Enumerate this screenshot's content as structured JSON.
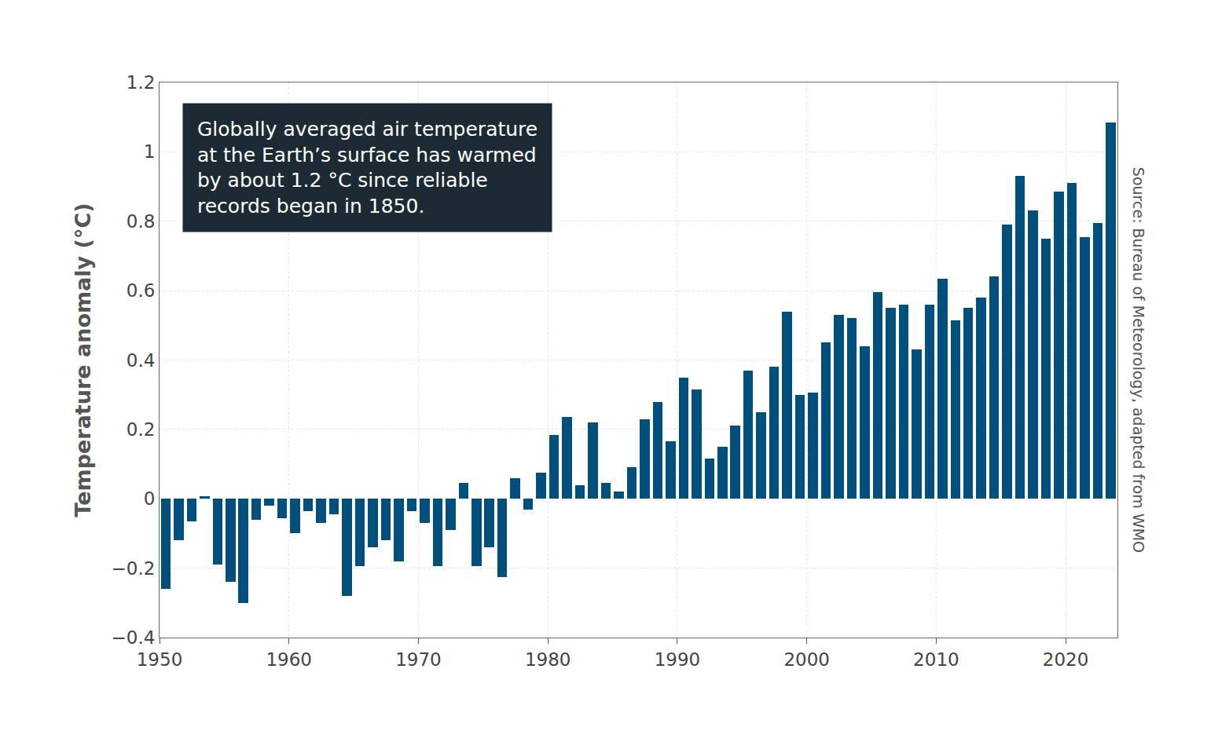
{
  "chart_data": {
    "type": "bar",
    "y_label": "Temperature anomaly (°C)",
    "annotation": "Globally averaged air temperature\nat the Earth’s surface has warmed\nby about 1.2 °C since reliable\nrecords began in 1850.",
    "source": "Source: Bureau of Meteorology, adapted from WMO",
    "x": [
      1950,
      1951,
      1952,
      1953,
      1954,
      1955,
      1956,
      1957,
      1958,
      1959,
      1960,
      1961,
      1962,
      1963,
      1964,
      1965,
      1966,
      1967,
      1968,
      1969,
      1970,
      1971,
      1972,
      1973,
      1974,
      1975,
      1976,
      1977,
      1978,
      1979,
      1980,
      1981,
      1982,
      1983,
      1984,
      1985,
      1986,
      1987,
      1988,
      1989,
      1990,
      1991,
      1992,
      1993,
      1994,
      1995,
      1996,
      1997,
      1998,
      1999,
      2000,
      2001,
      2002,
      2003,
      2004,
      2005,
      2006,
      2007,
      2008,
      2009,
      2010,
      2011,
      2012,
      2013,
      2014,
      2015,
      2016,
      2017,
      2018,
      2019,
      2020,
      2021,
      2022,
      2023
    ],
    "values": [
      -0.26,
      -0.12,
      -0.065,
      0.007,
      -0.19,
      -0.24,
      -0.3,
      -0.06,
      -0.02,
      -0.055,
      -0.1,
      -0.035,
      -0.07,
      -0.045,
      -0.28,
      -0.195,
      -0.14,
      -0.12,
      -0.18,
      -0.035,
      -0.07,
      -0.195,
      -0.09,
      0.045,
      -0.195,
      -0.14,
      -0.225,
      0.06,
      -0.03,
      0.075,
      0.185,
      0.235,
      0.04,
      0.22,
      0.045,
      0.02,
      0.09,
      0.23,
      0.28,
      0.165,
      0.35,
      0.315,
      0.115,
      0.15,
      0.21,
      0.37,
      0.25,
      0.38,
      0.54,
      0.3,
      0.305,
      0.45,
      0.53,
      0.52,
      0.44,
      0.595,
      0.55,
      0.56,
      0.43,
      0.56,
      0.635,
      0.515,
      0.55,
      0.58,
      0.64,
      0.79,
      0.93,
      0.83,
      0.75,
      0.885,
      0.91,
      0.755,
      0.795,
      1.085
    ],
    "color": "#004f7c",
    "xlim": [
      1950,
      2024
    ],
    "xticks": [
      1950,
      1960,
      1970,
      1980,
      1990,
      2000,
      2010,
      2020
    ],
    "ylim": [
      -0.4,
      1.2
    ],
    "yticks": [
      {
        "value": -0.4,
        "label": "−0.4"
      },
      {
        "value": -0.2,
        "label": "−0.2"
      },
      0,
      0.2,
      0.4,
      0.6,
      0.8,
      1,
      1.2
    ],
    "grid": true
  }
}
